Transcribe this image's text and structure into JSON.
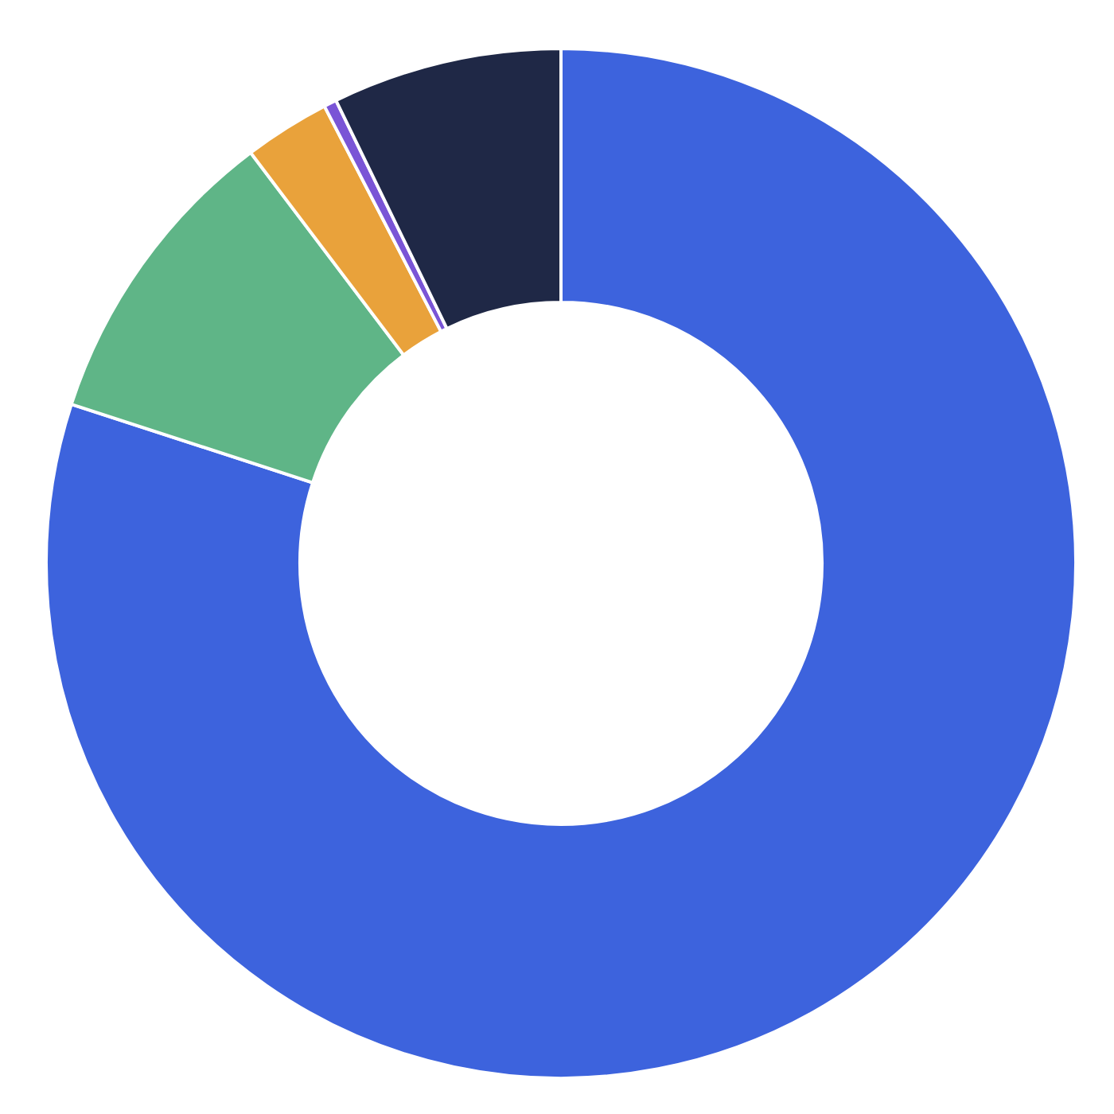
{
  "chart_data": {
    "type": "donut",
    "categories": [
      null,
      null,
      null,
      null,
      null
    ],
    "values": [
      80.0,
      9.7,
      2.7,
      0.4,
      7.2
    ],
    "colors": [
      "#3d63dd",
      "#5fb587",
      "#e9a23b",
      "#7a55d6",
      "#1f2846"
    ]
  }
}
